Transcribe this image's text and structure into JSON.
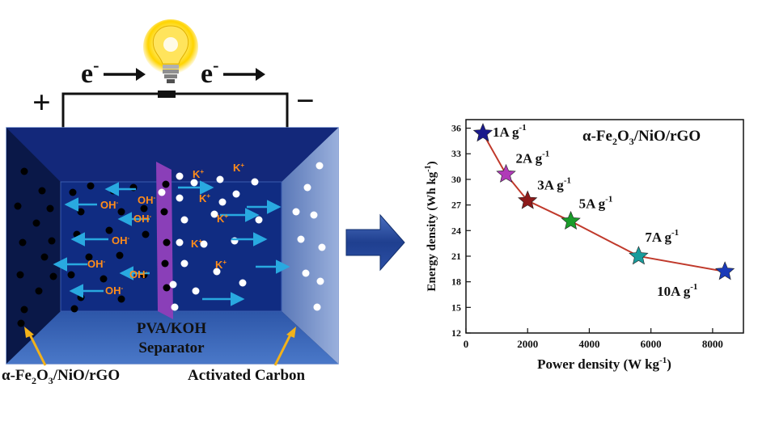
{
  "circuit": {
    "electron_left": "e",
    "electron_right": "e",
    "electron_sup": "-",
    "plus_sign": "+",
    "minus_sign": "−"
  },
  "cell": {
    "separator_line1": "PVA/KOH",
    "separator_line2": "Separator",
    "anode_label_pre": "α-Fe",
    "anode_label_sub1": "2",
    "anode_label_mid": "O",
    "anode_label_sub2": "3",
    "anode_label_post": "/NiO/rGO",
    "cathode_label": "Activated Carbon",
    "ions": [
      {
        "label": "OH",
        "sup": "-"
      },
      {
        "label": "OH",
        "sup": "-"
      },
      {
        "label": "OH",
        "sup": "-"
      },
      {
        "label": "OH",
        "sup": "-"
      },
      {
        "label": "OH",
        "sup": "-"
      },
      {
        "label": "OH",
        "sup": "-"
      },
      {
        "label": "OH",
        "sup": "-"
      },
      {
        "label": "K",
        "sup": "+"
      },
      {
        "label": "K",
        "sup": "+"
      },
      {
        "label": "K",
        "sup": "+"
      },
      {
        "label": "K",
        "sup": "+"
      },
      {
        "label": "K",
        "sup": "+"
      },
      {
        "label": "K",
        "sup": "+"
      }
    ]
  },
  "colors": {
    "cell_frame": "#0a1f5c",
    "cell_inner": "#0f2c7a",
    "separator": "#8a3fb8",
    "arrow": "#29a9e0",
    "ion_text": "#ff8c1a",
    "arrow_connector": "#1f3f8f",
    "line_color": "#c0392b"
  },
  "chart_data": {
    "type": "line",
    "title_pre": "α-Fe",
    "title_sub1": "2",
    "title_mid": "O",
    "title_sub2": "3",
    "title_post": "/NiO/rGO",
    "xlabel_pre": "Power density (W kg",
    "xlabel_sup": "-1",
    "xlabel_post": ")",
    "ylabel_pre": "Energy density (Wh kg",
    "ylabel_sup": "-1",
    "ylabel_post": ")",
    "xlim": [
      0,
      9000
    ],
    "ylim": [
      12,
      37
    ],
    "xticks": [
      0,
      2000,
      4000,
      6000,
      8000
    ],
    "yticks": [
      12,
      15,
      18,
      21,
      24,
      27,
      30,
      33,
      36
    ],
    "points": [
      {
        "x": 550,
        "y": 35.4,
        "label": "1A g",
        "sup": "-1",
        "color": "#1a1a8c"
      },
      {
        "x": 1300,
        "y": 30.6,
        "label": "2A g",
        "sup": "-1",
        "color": "#b03ab8"
      },
      {
        "x": 2000,
        "y": 27.5,
        "label": "3A g",
        "sup": "-1",
        "color": "#8c1a1a"
      },
      {
        "x": 3400,
        "y": 25.1,
        "label": "5A g",
        "sup": "-1",
        "color": "#1a9c2a"
      },
      {
        "x": 5600,
        "y": 21.0,
        "label": "7A g",
        "sup": "-1",
        "color": "#1a9c9c"
      },
      {
        "x": 8400,
        "y": 19.2,
        "label": "10A g",
        "sup": "-1",
        "color": "#1a3ab8"
      }
    ]
  }
}
